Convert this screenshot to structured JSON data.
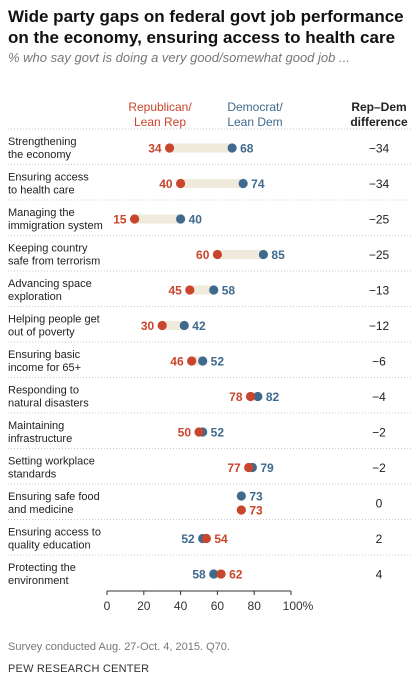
{
  "title": "Wide party gaps on federal govt job performance on the economy, ensuring access to health care",
  "subtitle": "% who say govt is doing a very good/somewhat good job ...",
  "legend": {
    "republican": [
      "Republican/",
      "Lean Rep"
    ],
    "democrat": [
      "Democrat/",
      "Lean Dem"
    ],
    "difference": [
      "Rep–Dem",
      "difference"
    ]
  },
  "colors": {
    "republican": "#c9452c",
    "democrat": "#3f6a8e",
    "bar": "#efeadb",
    "separator": "#c8c8c8",
    "axis": "#333333"
  },
  "chart_data": {
    "type": "dot",
    "xlim": [
      0,
      100
    ],
    "x_ticks": [
      "0",
      "20",
      "40",
      "60",
      "80",
      "100%"
    ],
    "x_tick_values": [
      0,
      20,
      40,
      60,
      80,
      100
    ],
    "categories": [
      [
        "Strengthening",
        "the economy"
      ],
      [
        "Ensuring access",
        "to health care"
      ],
      [
        "Managing the",
        "immigration system"
      ],
      [
        "Keeping country",
        "safe from terrorism"
      ],
      [
        "Advancing space",
        "exploration"
      ],
      [
        "Helping people get",
        "out of poverty"
      ],
      [
        "Ensuring basic",
        "income for 65+"
      ],
      [
        "Responding to",
        "natural disasters"
      ],
      [
        "Maintaining",
        "infrastructure"
      ],
      [
        "Setting workplace",
        "standards"
      ],
      [
        "Ensuring safe food",
        "and medicine"
      ],
      [
        "Ensuring access to",
        "quality education"
      ],
      [
        "Protecting the",
        "environment"
      ]
    ],
    "series": [
      {
        "name": "Republican/Lean Rep",
        "values": [
          34,
          40,
          15,
          60,
          45,
          30,
          46,
          78,
          50,
          77,
          73,
          54,
          62
        ]
      },
      {
        "name": "Democrat/Lean Dem",
        "values": [
          68,
          74,
          40,
          85,
          58,
          42,
          52,
          82,
          52,
          79,
          73,
          52,
          58
        ]
      }
    ],
    "difference": [
      "−34",
      "−34",
      "−25",
      "−25",
      "−13",
      "−12",
      "−6",
      "−4",
      "−2",
      "−2",
      "0",
      "2",
      "4"
    ]
  },
  "footer": {
    "source": "Survey conducted Aug. 27-Oct. 4, 2015. Q70.",
    "brand": "PEW RESEARCH CENTER"
  }
}
